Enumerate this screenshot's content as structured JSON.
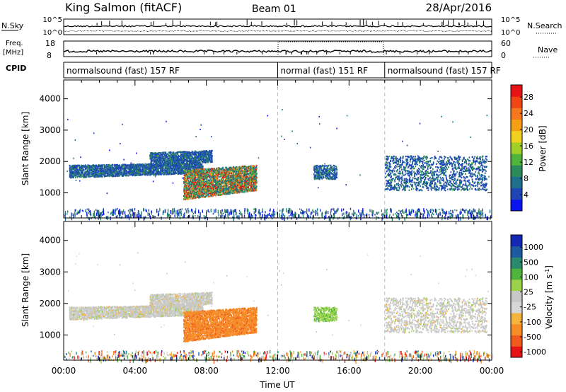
{
  "header": {
    "site": "King Salmon (fitACF)",
    "beam": "Beam 01",
    "date": "28/Apr/2016"
  },
  "panels": {
    "nsky_label": "N.Sky",
    "nsky_ticks": [
      "10^5",
      "10^0"
    ],
    "nsearch_label": "N.Search",
    "nsearch_ticks": [
      "10^5",
      "10^0"
    ],
    "freq_label": "Freq.",
    "freq_unit": "[MHz]",
    "freq_ticks": [
      "18",
      "8"
    ],
    "nave_label": "Nave",
    "nave_ticks": [
      "60",
      "0"
    ],
    "cpid_label": "CPID",
    "cpid_segments": [
      {
        "start": 0,
        "end": 12,
        "label": "normalsound (fast) 157 RF"
      },
      {
        "start": 12,
        "end": 18,
        "label": "normal (fast) 151 RF"
      },
      {
        "start": 18,
        "end": 24,
        "label": "normalsound (fast) 157 RF"
      }
    ]
  },
  "colors": {
    "power": [
      "#0a14f0",
      "#1e46b4",
      "#1e6e8c",
      "#2a8a5a",
      "#50b43c",
      "#a0d028",
      "#f0d21e",
      "#f5a014",
      "#f5781e",
      "#f04614",
      "#e61414"
    ],
    "velocity": [
      "#e61414",
      "#f05a1e",
      "#f58c28",
      "#f5b43c",
      "#d7d7d7",
      "#c8c8c8",
      "#9ad24a",
      "#50b43c",
      "#2a8a6e",
      "#1e5aa0",
      "#1428b4"
    ]
  },
  "chart_data": [
    {
      "type": "heatmap",
      "title": "",
      "xlabel": "",
      "ylabel": "Slant Range [km]",
      "xlim": [
        0,
        24
      ],
      "ylim": [
        200,
        4600
      ],
      "xticks": [
        0,
        4,
        8,
        12,
        16,
        20,
        24
      ],
      "yticks": [
        1000,
        2000,
        3000,
        4000
      ],
      "colorbar": {
        "label": "Power [dB]",
        "ticks": [
          4,
          8,
          12,
          16,
          20,
          24,
          28
        ],
        "range": [
          0,
          31
        ]
      },
      "regions": [
        {
          "t0": 0.3,
          "t1": 7.8,
          "r0": 1500,
          "r1": 1900,
          "level": "low"
        },
        {
          "t0": 4.8,
          "t1": 8.3,
          "r0": 1850,
          "r1": 2300,
          "level": "low"
        },
        {
          "t0": 6.7,
          "t1": 10.8,
          "r0": 800,
          "r1": 1750,
          "level": "high"
        },
        {
          "t0": 14.0,
          "t1": 15.3,
          "r0": 1450,
          "r1": 1900,
          "level": "low"
        },
        {
          "t0": 18.0,
          "t1": 23.7,
          "r0": 1100,
          "r1": 2200,
          "level": "low"
        }
      ]
    },
    {
      "type": "heatmap",
      "title": "",
      "xlabel": "Time UT",
      "ylabel": "Slant Range [km]",
      "xlim": [
        0,
        24
      ],
      "ylim": [
        200,
        4600
      ],
      "xticks": [
        0,
        4,
        8,
        12,
        16,
        20,
        24
      ],
      "xtick_labels": [
        "00:00",
        "04:00",
        "08:00",
        "12:00",
        "16:00",
        "20:00",
        "00:00"
      ],
      "yticks": [
        1000,
        2000,
        3000,
        4000
      ],
      "colorbar": {
        "label": "Velocity [m s^-1]",
        "ticks": [
          "1000",
          "500",
          "100",
          "25",
          "-25",
          "-100",
          "-500",
          "-1000"
        ]
      },
      "regions": [
        {
          "t0": 0.3,
          "t1": 7.8,
          "r0": 1500,
          "r1": 1900,
          "level": "gray"
        },
        {
          "t0": 4.8,
          "t1": 8.3,
          "r0": 1850,
          "r1": 2300,
          "level": "gray"
        },
        {
          "t0": 6.7,
          "t1": 10.8,
          "r0": 800,
          "r1": 1750,
          "level": "orange"
        },
        {
          "t0": 14.0,
          "t1": 15.3,
          "r0": 1450,
          "r1": 1900,
          "level": "green"
        },
        {
          "t0": 18.0,
          "t1": 23.7,
          "r0": 1100,
          "r1": 2200,
          "level": "gray"
        }
      ]
    }
  ]
}
